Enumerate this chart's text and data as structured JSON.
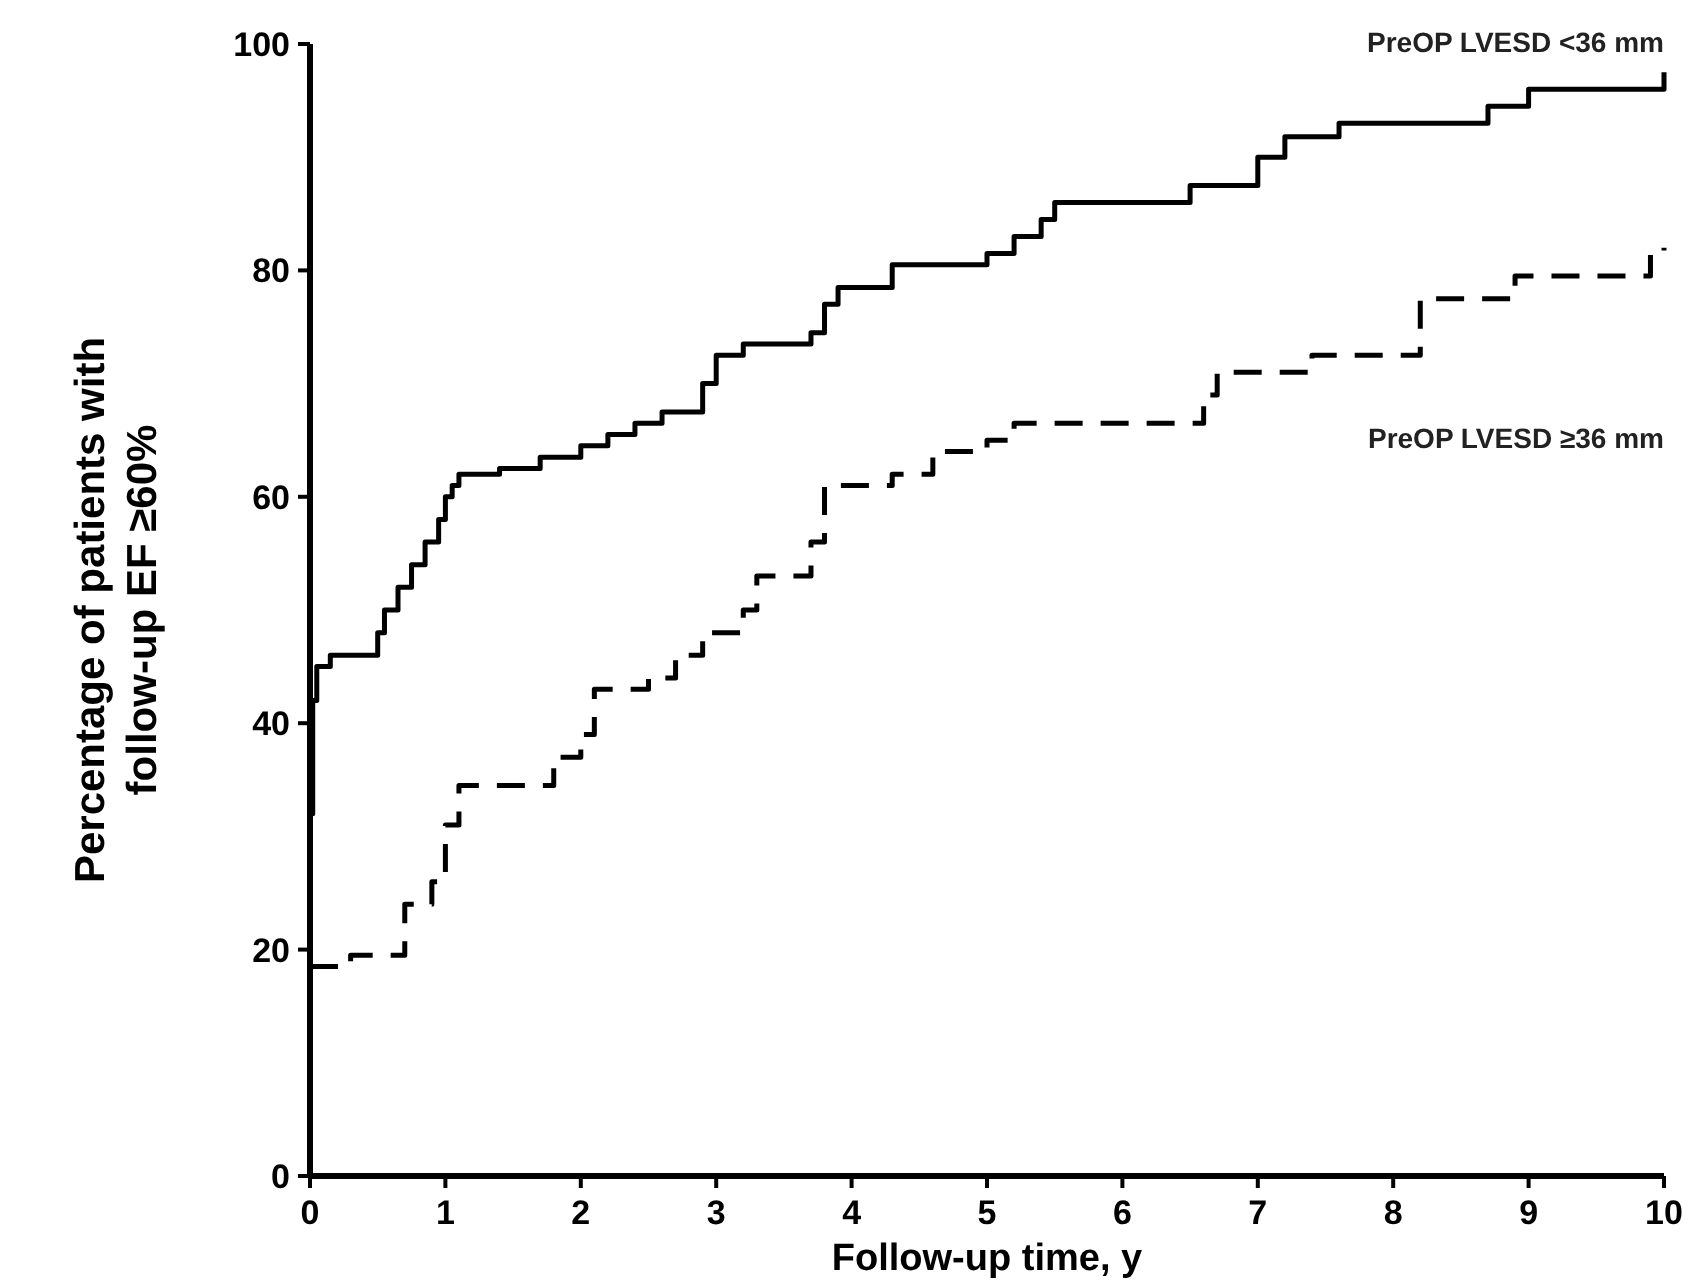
{
  "chart_data": {
    "type": "step",
    "xlabel": "Follow-up time, y",
    "ylabel": "Percentage of patients with\nfollow-up EF ≥60%",
    "xlim": [
      0,
      10
    ],
    "ylim": [
      0,
      100
    ],
    "xticks": [
      0,
      1,
      2,
      3,
      4,
      5,
      6,
      7,
      8,
      9,
      10
    ],
    "yticks": [
      0,
      20,
      40,
      60,
      80,
      100
    ],
    "grid": false,
    "series": [
      {
        "name": "PreOP LVESD <36 mm",
        "color": "#000000",
        "line_style": "solid",
        "x": [
          0,
          0.02,
          0.05,
          0.15,
          0.5,
          0.55,
          0.65,
          0.75,
          0.85,
          0.95,
          1.0,
          1.05,
          1.1,
          1.4,
          1.7,
          2.0,
          2.2,
          2.4,
          2.6,
          2.9,
          3.0,
          3.2,
          3.7,
          3.8,
          3.9,
          4.3,
          5.0,
          5.2,
          5.4,
          5.5,
          6.5,
          7.0,
          7.2,
          7.6,
          8.7,
          9.0,
          10
        ],
        "values": [
          32,
          42,
          45,
          46,
          48,
          50,
          52,
          54,
          56,
          58,
          60,
          61,
          62,
          62.5,
          63.5,
          64.5,
          65.5,
          66.5,
          67.5,
          70,
          72.5,
          73.5,
          74.5,
          77,
          78.5,
          80.5,
          81.5,
          83,
          84.5,
          86,
          87.5,
          90,
          91.8,
          93,
          94.5,
          96,
          97.5
        ]
      },
      {
        "name": "PreOP LVESD ≥36 mm",
        "color": "#000000",
        "line_style": "dashed",
        "x": [
          0,
          0.3,
          0.7,
          0.9,
          1.0,
          1.1,
          1.8,
          2.0,
          2.1,
          2.5,
          2.7,
          2.9,
          3.2,
          3.3,
          3.7,
          3.8,
          4.3,
          4.6,
          5.0,
          5.2,
          6.6,
          6.7,
          7.4,
          8.2,
          8.9,
          9.9,
          10
        ],
        "values": [
          18.5,
          19.5,
          24,
          26,
          31,
          34.5,
          37,
          39,
          43,
          44,
          46,
          48,
          50,
          53,
          56,
          61,
          62,
          64,
          65,
          66.5,
          69,
          71,
          72.5,
          77.5,
          79.5,
          81.5,
          82
        ]
      }
    ]
  }
}
